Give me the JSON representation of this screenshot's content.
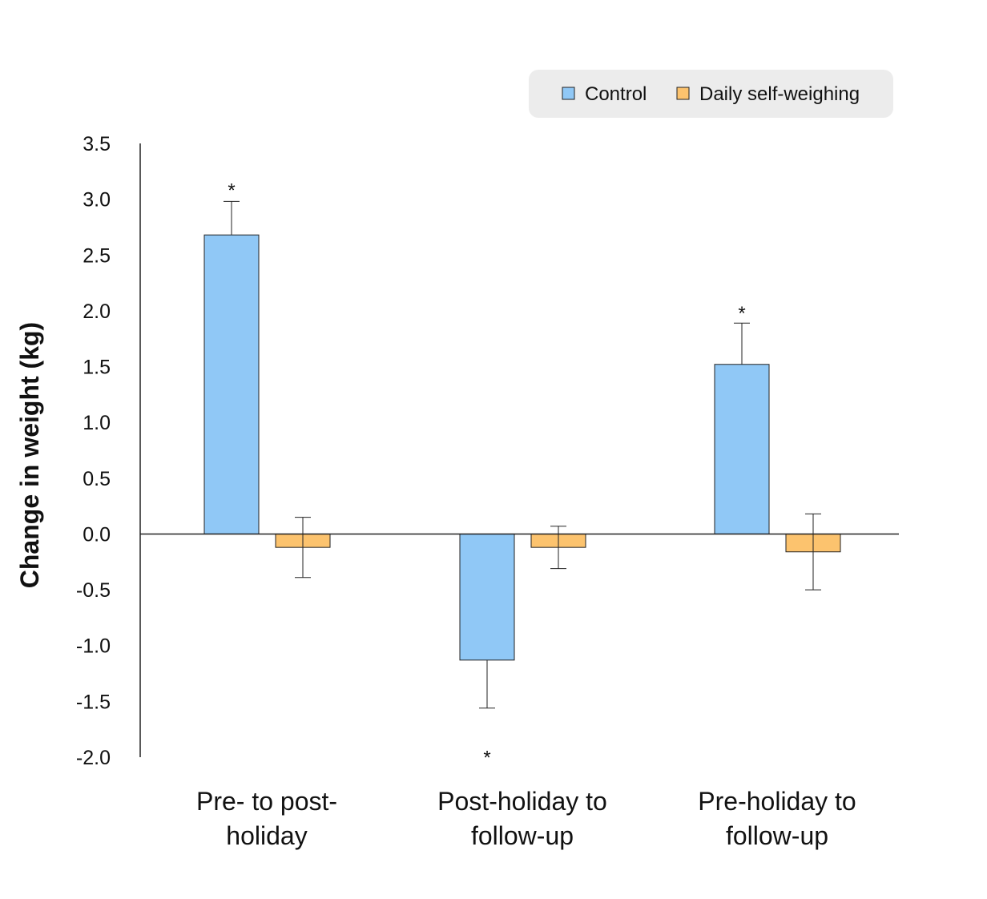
{
  "chart_data": {
    "type": "bar",
    "title": "",
    "xlabel": "",
    "ylabel": "Change in weight (kg)",
    "ylim": [
      -2.0,
      3.5
    ],
    "yticks": [
      "3.5",
      "3.0",
      "2.5",
      "2.0",
      "1.5",
      "1.0",
      "0.5",
      "0.0",
      "-0.5",
      "-1.0",
      "-1.5",
      "-2.0"
    ],
    "ytick_values": [
      3.5,
      3.0,
      2.5,
      2.0,
      1.5,
      1.0,
      0.5,
      0.0,
      -0.5,
      -1.0,
      -1.5,
      -2.0
    ],
    "categories": [
      [
        "Pre- to post-",
        "holiday"
      ],
      [
        "Post-holiday to",
        "follow-up"
      ],
      [
        "Pre-holiday to",
        "follow-up"
      ]
    ],
    "series": [
      {
        "name": "Control",
        "color": "#90c8f6",
        "values": [
          2.68,
          -1.13,
          1.52
        ],
        "errors": [
          0.3,
          0.43,
          0.37
        ]
      },
      {
        "name": "Daily self-weighing",
        "color": "#fcc36e",
        "values": [
          -0.12,
          -0.12,
          -0.16
        ],
        "errors": [
          0.27,
          0.19,
          0.34
        ]
      }
    ],
    "annotations": [
      {
        "text": "*",
        "category": 0,
        "series": 0,
        "value": 3.15
      },
      {
        "text": "*",
        "category": 1,
        "series": 0,
        "value": -1.93
      },
      {
        "text": "*",
        "category": 2,
        "series": 0,
        "value": 2.05
      }
    ],
    "legend": {
      "position": "top-right",
      "entries": [
        "Control",
        "Daily self-weighing"
      ]
    },
    "grid": false
  }
}
